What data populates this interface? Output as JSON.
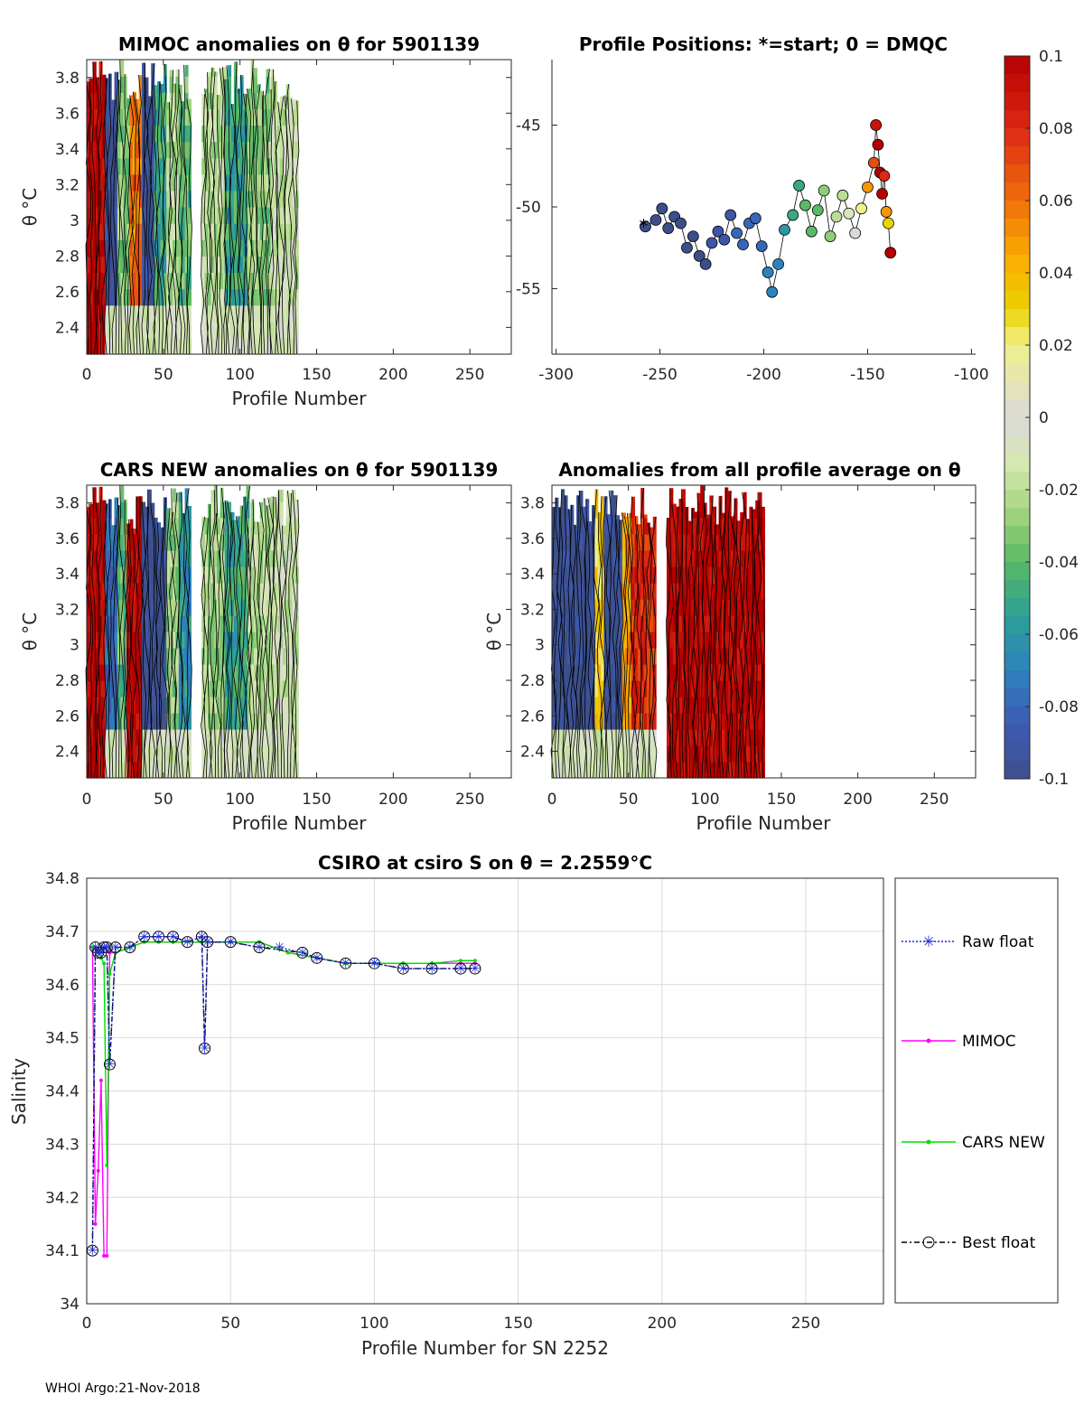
{
  "colors": {
    "raw": "#1f2ad6",
    "mimoc": "#ff00ff",
    "cars": "#00e000",
    "best": "#000000",
    "axis": "#262626",
    "grid": "#d9d9d9"
  },
  "footer": "WHOI Argo:21-Nov-2018",
  "chart_data": [
    {
      "id": "mimoc",
      "type": "heatmap",
      "title": "MIMOC anomalies on θ  for 5901139",
      "xlabel": "Profile Number",
      "ylabel": "θ °C",
      "xlim": [
        0,
        277
      ],
      "ylim": [
        2.25,
        3.9
      ],
      "xticks": [
        "0",
        "50",
        "100",
        "150",
        "200",
        "250"
      ],
      "yticks": [
        "2.4",
        "2.6",
        "2.8",
        "3",
        "3.2",
        "3.4",
        "3.6",
        "3.8"
      ],
      "columns": [
        {
          "from": 0,
          "to": 12,
          "value": 0.1
        },
        {
          "from": 12,
          "to": 20,
          "value": -0.1
        },
        {
          "from": 20,
          "to": 28,
          "value": -0.03
        },
        {
          "from": 28,
          "to": 36,
          "value": 0.06
        },
        {
          "from": 36,
          "to": 44,
          "value": -0.1
        },
        {
          "from": 44,
          "to": 52,
          "value": -0.05
        },
        {
          "from": 52,
          "to": 60,
          "value": -0.02
        },
        {
          "from": 60,
          "to": 68,
          "value": -0.04
        },
        {
          "from": 75,
          "to": 90,
          "value": -0.02
        },
        {
          "from": 90,
          "to": 105,
          "value": -0.05
        },
        {
          "from": 105,
          "to": 120,
          "value": -0.03
        },
        {
          "from": 120,
          "to": 138,
          "value": -0.015
        }
      ]
    },
    {
      "id": "positions",
      "type": "scatter",
      "title": "Profile Positions: *=start; 0 = DMQC",
      "xlim": [
        -302,
        -98
      ],
      "ylim": [
        -59,
        -41
      ],
      "xticks": [
        "-300",
        "-250",
        "-200",
        "-150",
        "-100"
      ],
      "yticks": [
        "-45",
        "-50",
        "-55"
      ],
      "x": [
        -257,
        -252,
        -249,
        -246,
        -243,
        -240,
        -237,
        -234,
        -231,
        -228,
        -225,
        -222,
        -219,
        -216,
        -213,
        -210,
        -207,
        -204,
        -201,
        -198,
        -196,
        -193,
        -190,
        -186,
        -183,
        -180,
        -177,
        -174,
        -171,
        -168,
        -165,
        -162,
        -159,
        -156,
        -153,
        -150,
        -147,
        -146,
        -145,
        -144,
        -143,
        -142,
        -141,
        -140,
        -139
      ],
      "y": [
        -51.2,
        -50.8,
        -50.1,
        -51.3,
        -50.6,
        -51.0,
        -52.5,
        -51.8,
        -53.0,
        -53.5,
        -52.2,
        -51.5,
        -52.0,
        -50.5,
        -51.6,
        -52.3,
        -51.0,
        -50.7,
        -52.4,
        -54.0,
        -55.2,
        -53.5,
        -51.4,
        -50.5,
        -48.7,
        -49.9,
        -51.5,
        -50.2,
        -49.0,
        -51.8,
        -50.6,
        -49.3,
        -50.4,
        -51.6,
        -50.1,
        -48.8,
        -47.3,
        -45.0,
        -46.2,
        -47.9,
        -49.2,
        -48.1,
        -50.3,
        -51.0,
        -52.8
      ],
      "c": [
        -0.1,
        -0.1,
        -0.1,
        -0.1,
        -0.1,
        -0.1,
        -0.1,
        -0.1,
        -0.1,
        -0.1,
        -0.09,
        -0.09,
        -0.09,
        -0.09,
        -0.08,
        -0.08,
        -0.08,
        -0.08,
        -0.08,
        -0.07,
        -0.07,
        -0.07,
        -0.06,
        -0.05,
        -0.05,
        -0.04,
        -0.04,
        -0.04,
        -0.03,
        -0.03,
        -0.02,
        -0.02,
        -0.01,
        0.0,
        0.02,
        0.05,
        0.07,
        0.09,
        0.1,
        0.1,
        0.1,
        0.08,
        0.05,
        0.03,
        0.1
      ]
    },
    {
      "id": "cars",
      "type": "heatmap",
      "title": "CARS NEW anomalies on θ for 5901139",
      "xlabel": "Profile Number",
      "ylabel": "θ °C",
      "xlim": [
        0,
        277
      ],
      "ylim": [
        2.25,
        3.9
      ],
      "xticks": [
        "0",
        "50",
        "100",
        "150",
        "200",
        "250"
      ],
      "yticks": [
        "2.4",
        "2.6",
        "2.8",
        "3",
        "3.2",
        "3.4",
        "3.6",
        "3.8"
      ],
      "columns": [
        {
          "from": 0,
          "to": 12,
          "value": 0.1
        },
        {
          "from": 12,
          "to": 20,
          "value": -0.08
        },
        {
          "from": 20,
          "to": 26,
          "value": -0.04
        },
        {
          "from": 26,
          "to": 36,
          "value": 0.1
        },
        {
          "from": 36,
          "to": 52,
          "value": -0.1
        },
        {
          "from": 52,
          "to": 60,
          "value": -0.03
        },
        {
          "from": 60,
          "to": 68,
          "value": -0.06
        },
        {
          "from": 75,
          "to": 90,
          "value": -0.025
        },
        {
          "from": 90,
          "to": 105,
          "value": -0.05
        },
        {
          "from": 105,
          "to": 120,
          "value": -0.02
        },
        {
          "from": 120,
          "to": 138,
          "value": -0.015
        }
      ]
    },
    {
      "id": "average",
      "type": "heatmap",
      "title": "Anomalies from all profile average on θ",
      "xlabel": "Profile Number",
      "ylabel": "θ °C",
      "xlim": [
        0,
        277
      ],
      "ylim": [
        2.25,
        3.9
      ],
      "xticks": [
        "0",
        "50",
        "100",
        "150",
        "200",
        "250"
      ],
      "yticks": [
        "2.4",
        "2.6",
        "2.8",
        "3",
        "3.2",
        "3.4",
        "3.6",
        "3.8"
      ],
      "columns": [
        {
          "from": 0,
          "to": 28,
          "value": -0.1
        },
        {
          "from": 28,
          "to": 34,
          "value": 0.03
        },
        {
          "from": 34,
          "to": 46,
          "value": -0.1
        },
        {
          "from": 46,
          "to": 52,
          "value": 0.05
        },
        {
          "from": 52,
          "to": 68,
          "value": 0.08
        },
        {
          "from": 75,
          "to": 138,
          "value": 0.1
        }
      ]
    },
    {
      "id": "colorbar",
      "type": "colorbar",
      "ticks": [
        "0.1",
        "0.08",
        "0.06",
        "0.04",
        "0.02",
        "0",
        "-0.02",
        "-0.04",
        "-0.06",
        "-0.08",
        "-0.1"
      ],
      "clim": [
        -0.1,
        0.1
      ]
    },
    {
      "id": "salinity",
      "type": "line",
      "title": "CSIRO at csiro S on θ = 2.2559°C",
      "xlabel": "Profile Number for SN 2252",
      "ylabel": "Salinity",
      "xlim": [
        0,
        277
      ],
      "ylim": [
        34,
        34.8
      ],
      "xticks": [
        "0",
        "50",
        "100",
        "150",
        "200",
        "250"
      ],
      "yticks": [
        "34",
        "34.1",
        "34.2",
        "34.3",
        "34.4",
        "34.5",
        "34.6",
        "34.7",
        "34.8"
      ],
      "series": [
        {
          "name": "Raw float",
          "x": [
            2,
            3,
            4,
            5,
            6,
            7,
            8,
            10,
            15,
            20,
            25,
            30,
            35,
            40,
            41,
            42,
            50,
            60,
            67,
            75,
            80,
            90,
            100,
            110,
            120,
            130,
            135
          ],
          "y": [
            34.1,
            34.67,
            34.66,
            34.66,
            34.67,
            34.67,
            34.45,
            34.67,
            34.67,
            34.69,
            34.69,
            34.69,
            34.68,
            34.69,
            34.48,
            34.68,
            34.68,
            34.67,
            34.67,
            34.66,
            34.65,
            34.64,
            34.64,
            34.63,
            34.63,
            34.63,
            34.63
          ]
        },
        {
          "name": "MIMOC",
          "x": [
            2,
            3,
            4,
            5,
            6,
            7,
            8,
            10,
            15,
            20,
            25,
            30,
            40,
            50,
            60,
            70,
            80,
            90,
            100,
            110,
            120,
            130,
            135
          ],
          "y": [
            34.67,
            34.15,
            34.25,
            34.42,
            34.09,
            34.09,
            34.66,
            34.66,
            34.67,
            34.68,
            34.68,
            34.68,
            34.68,
            34.68,
            34.68,
            34.66,
            34.65,
            34.64,
            34.64,
            34.64,
            34.64,
            34.64,
            34.64
          ]
        },
        {
          "name": "CARS NEW",
          "x": [
            2,
            3,
            4,
            5,
            6,
            7,
            8,
            10,
            15,
            20,
            25,
            30,
            40,
            50,
            60,
            70,
            80,
            90,
            100,
            110,
            120,
            130,
            135
          ],
          "y": [
            34.67,
            34.67,
            34.66,
            34.65,
            34.64,
            34.26,
            34.62,
            34.66,
            34.67,
            34.68,
            34.68,
            34.68,
            34.68,
            34.68,
            34.68,
            34.66,
            34.65,
            34.64,
            34.64,
            34.64,
            34.64,
            34.645,
            34.645
          ]
        },
        {
          "name": "Best float",
          "x": [
            2,
            3,
            4,
            5,
            6,
            7,
            8,
            10,
            15,
            20,
            25,
            30,
            35,
            40,
            41,
            42,
            50,
            60,
            75,
            80,
            90,
            100,
            110,
            120,
            130,
            135
          ],
          "y": [
            34.1,
            34.67,
            34.66,
            34.66,
            34.67,
            34.67,
            34.45,
            34.67,
            34.67,
            34.69,
            34.69,
            34.69,
            34.68,
            34.69,
            34.48,
            34.68,
            34.68,
            34.67,
            34.66,
            34.65,
            34.64,
            34.64,
            34.63,
            34.63,
            34.63,
            34.63
          ]
        }
      ],
      "legend": [
        "Raw float",
        "MIMOC",
        "CARS NEW",
        "Best float"
      ]
    }
  ]
}
